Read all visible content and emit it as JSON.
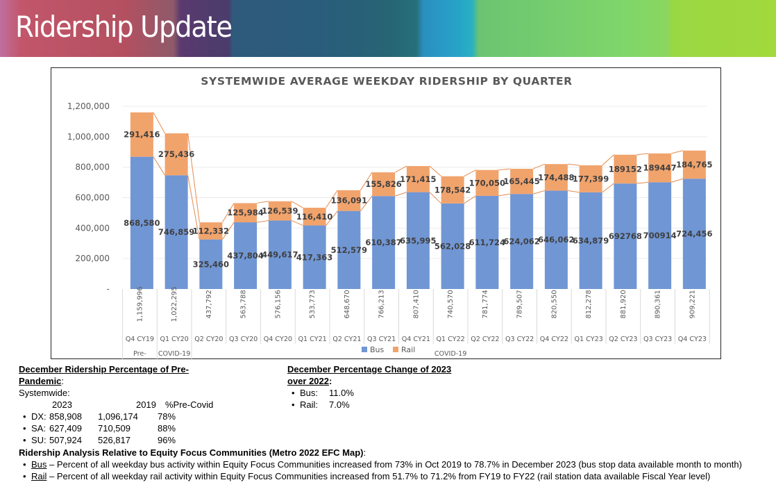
{
  "header": {
    "title": "Ridership Update"
  },
  "chart_data": {
    "type": "bar",
    "stacked": true,
    "title": "SYSTEMWIDE AVERAGE WEEKDAY RIDERSHIP BY QUARTER",
    "xlabel": "",
    "ylabel": "",
    "ylim": [
      0,
      1200000
    ],
    "yticks": [
      0,
      200000,
      400000,
      600000,
      800000,
      1000000,
      1200000
    ],
    "ytick_labels": [
      "-",
      "200,000",
      "400,000",
      "600,000",
      "800,000",
      "1,000,000",
      "1,200,000"
    ],
    "grid": true,
    "legend": "bottom-center",
    "categories": [
      "Q4 CY19",
      "Q1 CY20",
      "Q2 CY20",
      "Q3 CY20",
      "Q4 CY20",
      "Q1 CY21",
      "Q2 CY21",
      "Q3 CY21",
      "Q4 CY21",
      "Q1 CY22",
      "Q2 CY22",
      "Q3 CY22",
      "Q4 CY22",
      "Q1 CY23",
      "Q2 CY23",
      "Q3 CY23",
      "Q4 CY23"
    ],
    "series": [
      {
        "name": "Bus",
        "color": "#7096d4",
        "values": [
          868580,
          746859,
          325460,
          437804,
          449617,
          417363,
          512579,
          610387,
          635995,
          562028,
          611724,
          624062,
          646062,
          634879,
          692768,
          700914,
          724456
        ],
        "labels": [
          "868,580",
          "746,859",
          "325,460",
          "437,804",
          "449,617",
          "417,363",
          "512,579",
          "610,387",
          "635,995",
          "562,028",
          "611,724",
          "624,062",
          "646,062",
          "634,879",
          "692768",
          "700914",
          "724,456"
        ]
      },
      {
        "name": "Rail",
        "color": "#f1a36c",
        "values": [
          291416,
          275436,
          112332,
          125984,
          126539,
          116410,
          136091,
          155826,
          171415,
          178542,
          170050,
          165445,
          174488,
          177399,
          189152,
          189447,
          184765
        ],
        "labels": [
          "291,416",
          "275,436",
          "112,332",
          "125,984",
          "126,539",
          "116,410",
          "136,091",
          "155,826",
          "171,415",
          "178,542",
          "170,050",
          "165,445",
          "174,488",
          "177,399",
          "189152",
          "189447",
          "184,765"
        ]
      }
    ],
    "totals": [
      1159996,
      1022295,
      437792,
      563788,
      576156,
      533773,
      648670,
      766213,
      807410,
      740570,
      781774,
      789507,
      820550,
      812278,
      881920,
      890361,
      909221
    ],
    "total_labels": [
      "1,159,996",
      "1,022,295",
      "437,792",
      "563,788",
      "576,156",
      "533,773",
      "648,670",
      "766,213",
      "807,410",
      "740,570",
      "781,774",
      "789,507",
      "820,550",
      "812,278",
      "881,920",
      "890,361",
      "909,221"
    ],
    "group_labels": [
      {
        "text": "Pre-",
        "category_index": 0
      },
      {
        "text": "COVID-19",
        "category_index": 1
      },
      {
        "text": "COVID-19",
        "category_index": 9
      }
    ],
    "series_lines": true
  },
  "notes": {
    "pre_pandemic": {
      "heading_line1": "December Ridership Percentage  of Pre-",
      "heading_line2": "Pandemic",
      "heading_suffix": ":",
      "subheading": "Systemwide:",
      "columns": [
        "2023",
        "2019",
        "%Pre-Covid"
      ],
      "rows": [
        {
          "label": "DX:",
          "y2023": "858,908",
          "y2019": "1,096,174",
          "pct": "78%"
        },
        {
          "label": "SA:",
          "y2023": "627,409",
          "y2019": "710,509",
          "pct": "88%"
        },
        {
          "label": "SU:",
          "y2023": "507,924",
          "y2019": "526,817",
          "pct": "96%"
        }
      ]
    },
    "change": {
      "heading_line1": "December Percentage Change of 2023",
      "heading_line2": "over 2022",
      "heading_suffix": ":",
      "items": [
        {
          "label": "Bus:",
          "value": "11.0%"
        },
        {
          "label": "Rail:",
          "value": "7.0%"
        }
      ]
    },
    "efc": {
      "heading": "Ridership Analysis Relative to Equity Focus Communities (Metro 2022 EFC Map)",
      "heading_suffix": ":",
      "items": [
        {
          "mode": "Bus",
          "text": " – Percent of all weekday bus activity within Equity Focus Communities increased from 73% in Oct 2019 to 78.7% in December 2023 (bus stop data available month to month)"
        },
        {
          "mode": "Rail",
          "text": " – Percent of all weekday rail activity within Equity Focus Communities increased from 51.7% to 71.2% from FY19 to FY22 (rail station data available Fiscal Year level)"
        }
      ]
    }
  }
}
